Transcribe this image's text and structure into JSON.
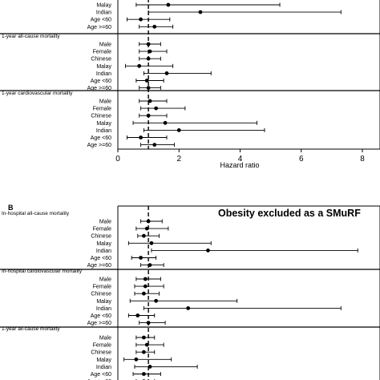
{
  "chart_data": [
    {
      "type": "forest",
      "panel_label": "",
      "annotation": "",
      "xlabel": "Hazard ratio",
      "xlim": [
        0,
        8
      ],
      "xticks": [
        "0",
        "2",
        "4",
        "6",
        "8"
      ],
      "reference_line": 1,
      "groups": [
        {
          "title": "",
          "rows": [
            {
              "label": "Malay",
              "hr": 1.65,
              "lo": 0.6,
              "hi": 5.3
            },
            {
              "label": "Indian",
              "hr": 2.7,
              "lo": 1.0,
              "hi": 7.3
            },
            {
              "label": "Age <60",
              "hr": 0.75,
              "lo": 0.3,
              "hi": 1.7
            },
            {
              "label": "Age >=60",
              "hr": 1.2,
              "lo": 0.7,
              "hi": 1.8
            }
          ]
        },
        {
          "title": "1-year all-cause mortality",
          "rows": [
            {
              "label": "Male",
              "hr": 1.0,
              "lo": 0.7,
              "hi": 1.4
            },
            {
              "label": "Female",
              "hr": 1.05,
              "lo": 0.7,
              "hi": 1.6
            },
            {
              "label": "Chinese",
              "hr": 1.0,
              "lo": 0.7,
              "hi": 1.4
            },
            {
              "label": "Malay",
              "hr": 0.7,
              "lo": 0.25,
              "hi": 1.8
            },
            {
              "label": "Indian",
              "hr": 1.6,
              "lo": 0.85,
              "hi": 3.05
            },
            {
              "label": "Age <60",
              "hr": 0.95,
              "lo": 0.6,
              "hi": 1.5
            },
            {
              "label": "Age >=60",
              "hr": 1.0,
              "lo": 0.7,
              "hi": 1.4
            }
          ]
        },
        {
          "title": "1-year cardiovascular mortality",
          "rows": [
            {
              "label": "Male",
              "hr": 1.05,
              "lo": 0.7,
              "hi": 1.6
            },
            {
              "label": "Female",
              "hr": 1.25,
              "lo": 0.75,
              "hi": 2.2
            },
            {
              "label": "Chinese",
              "hr": 1.0,
              "lo": 0.7,
              "hi": 1.6
            },
            {
              "label": "Malay",
              "hr": 1.55,
              "lo": 0.5,
              "hi": 4.55
            },
            {
              "label": "Indian",
              "hr": 2.0,
              "lo": 0.85,
              "hi": 4.8
            },
            {
              "label": "Age <60",
              "hr": 0.75,
              "lo": 0.3,
              "hi": 1.6
            },
            {
              "label": "Age >=60",
              "hr": 1.2,
              "lo": 0.75,
              "hi": 1.85
            }
          ]
        }
      ]
    },
    {
      "type": "forest",
      "panel_label": "B",
      "annotation": "Obesity excluded as a SMuRF",
      "xlabel": "",
      "xlim": [
        0,
        8
      ],
      "xticks": [],
      "reference_line": 1,
      "groups": [
        {
          "title": "In-hospital all-cause mortality",
          "rows": [
            {
              "label": "Male",
              "hr": 1.0,
              "lo": 0.75,
              "hi": 1.45
            },
            {
              "label": "Female",
              "hr": 0.95,
              "lo": 0.6,
              "hi": 1.65
            },
            {
              "label": "Chinese",
              "hr": 0.85,
              "lo": 0.65,
              "hi": 1.35
            },
            {
              "label": "Malay",
              "hr": 1.1,
              "lo": 0.35,
              "hi": 3.05
            },
            {
              "label": "Indian",
              "hr": 2.95,
              "lo": 1.1,
              "hi": 7.85
            },
            {
              "label": "Age <60",
              "hr": 0.75,
              "lo": 0.45,
              "hi": 1.25
            },
            {
              "label": "Age >=60",
              "hr": 1.05,
              "lo": 0.75,
              "hi": 1.5
            }
          ]
        },
        {
          "title": "In-hospital cardiovascular mortality",
          "rows": [
            {
              "label": "Male",
              "hr": 0.9,
              "lo": 0.6,
              "hi": 1.4
            },
            {
              "label": "Female",
              "hr": 0.9,
              "lo": 0.55,
              "hi": 1.5
            },
            {
              "label": "Chinese",
              "hr": 0.85,
              "lo": 0.55,
              "hi": 1.35
            },
            {
              "label": "Malay",
              "hr": 1.25,
              "lo": 0.4,
              "hi": 3.9
            },
            {
              "label": "Indian",
              "hr": 2.3,
              "lo": 0.85,
              "hi": 7.3
            },
            {
              "label": "Age <60",
              "hr": 0.65,
              "lo": 0.35,
              "hi": 1.2
            },
            {
              "label": "Age >=60",
              "hr": 1.0,
              "lo": 0.7,
              "hi": 1.55
            }
          ]
        },
        {
          "title": "1-year all-cause mortality",
          "rows": [
            {
              "label": "Male",
              "hr": 0.85,
              "lo": 0.6,
              "hi": 1.2
            },
            {
              "label": "Female",
              "hr": 0.95,
              "lo": 0.6,
              "hi": 1.5
            },
            {
              "label": "Chinese",
              "hr": 0.85,
              "lo": 0.6,
              "hi": 1.2
            },
            {
              "label": "Malay",
              "hr": 0.6,
              "lo": 0.2,
              "hi": 1.75
            },
            {
              "label": "Indian",
              "hr": 1.05,
              "lo": 0.55,
              "hi": 2.6
            },
            {
              "label": "Age <60",
              "hr": 0.85,
              "lo": 0.5,
              "hi": 1.4
            },
            {
              "label": "Age >=60",
              "hr": 0.85,
              "lo": 0.6,
              "hi": 1.2
            }
          ]
        }
      ]
    }
  ]
}
